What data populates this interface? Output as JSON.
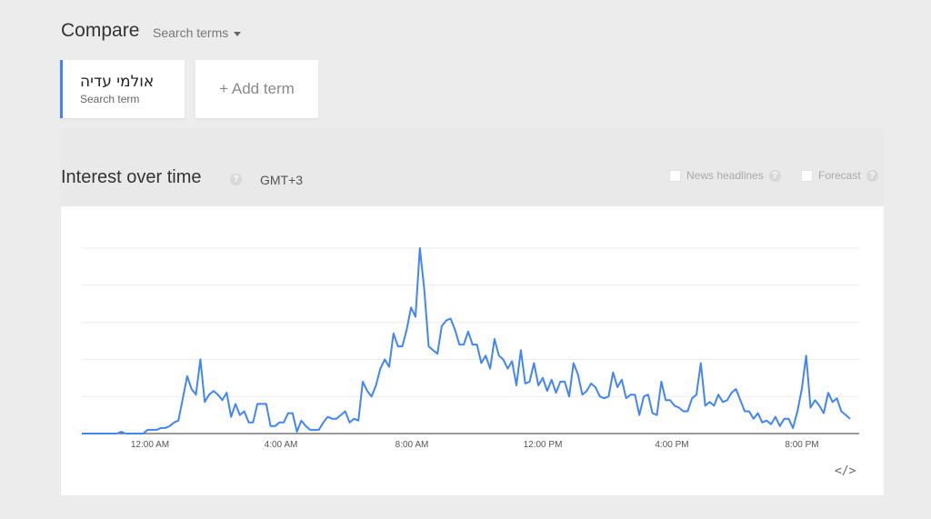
{
  "header": {
    "title": "Compare",
    "search_terms_dropdown": "Search terms"
  },
  "terms": [
    {
      "name": "אולמי עדיה",
      "subtitle": "Search term",
      "color": "#4285f4"
    }
  ],
  "add_term_label": "+ Add term",
  "interest_panel": {
    "title": "Interest over time",
    "timezone": "GMT+3",
    "options": [
      {
        "label": "News headlines",
        "checked": false
      },
      {
        "label": "Forecast",
        "checked": false
      }
    ],
    "help_glyph": "?"
  },
  "embed_icon": "code-embed-icon",
  "chart_data": {
    "type": "line",
    "series": [
      {
        "color": "#4285f4",
        "values": [
          0,
          0,
          0,
          0,
          0,
          0,
          0,
          0,
          0,
          1,
          0,
          0,
          0,
          0,
          0,
          2,
          2,
          2,
          3,
          3,
          4,
          6,
          7,
          19,
          31,
          24,
          21,
          40,
          17,
          21,
          23,
          21,
          18,
          22,
          9,
          16,
          10,
          12,
          6,
          6,
          16,
          16,
          16,
          4,
          4,
          6,
          6,
          11,
          11,
          1,
          7,
          4,
          2,
          2,
          2,
          6,
          9,
          8,
          8,
          10,
          12,
          6,
          8,
          7,
          28,
          23,
          20,
          26,
          35,
          40,
          36,
          54,
          47,
          47,
          56,
          68,
          63,
          100,
          78,
          47,
          45,
          43,
          58,
          61,
          62,
          56,
          48,
          48,
          55,
          48,
          48,
          38,
          42,
          35,
          51,
          42,
          40,
          35,
          39,
          26,
          45,
          27,
          28,
          38,
          26,
          30,
          23,
          29,
          22,
          28,
          28,
          20,
          38,
          32,
          21,
          23,
          27,
          25,
          20,
          19,
          20,
          33,
          25,
          29,
          19,
          21,
          21,
          10,
          20,
          21,
          11,
          10,
          28,
          18,
          18,
          15,
          14,
          12,
          12,
          19,
          21,
          38,
          15,
          17,
          15,
          21,
          17,
          18,
          22,
          24,
          18,
          12,
          12,
          8,
          11,
          6,
          7,
          5,
          9,
          4,
          8,
          8,
          3,
          12,
          24,
          42,
          14,
          18,
          15,
          11,
          22,
          17,
          19,
          12,
          10,
          8
        ]
      }
    ],
    "ylim": [
      0,
      100
    ],
    "x_ticks": [
      "12:00 AM",
      "4:00 AM",
      "8:00 AM",
      "12:00 PM",
      "4:00 PM",
      "8:00 PM"
    ],
    "grid": true
  }
}
